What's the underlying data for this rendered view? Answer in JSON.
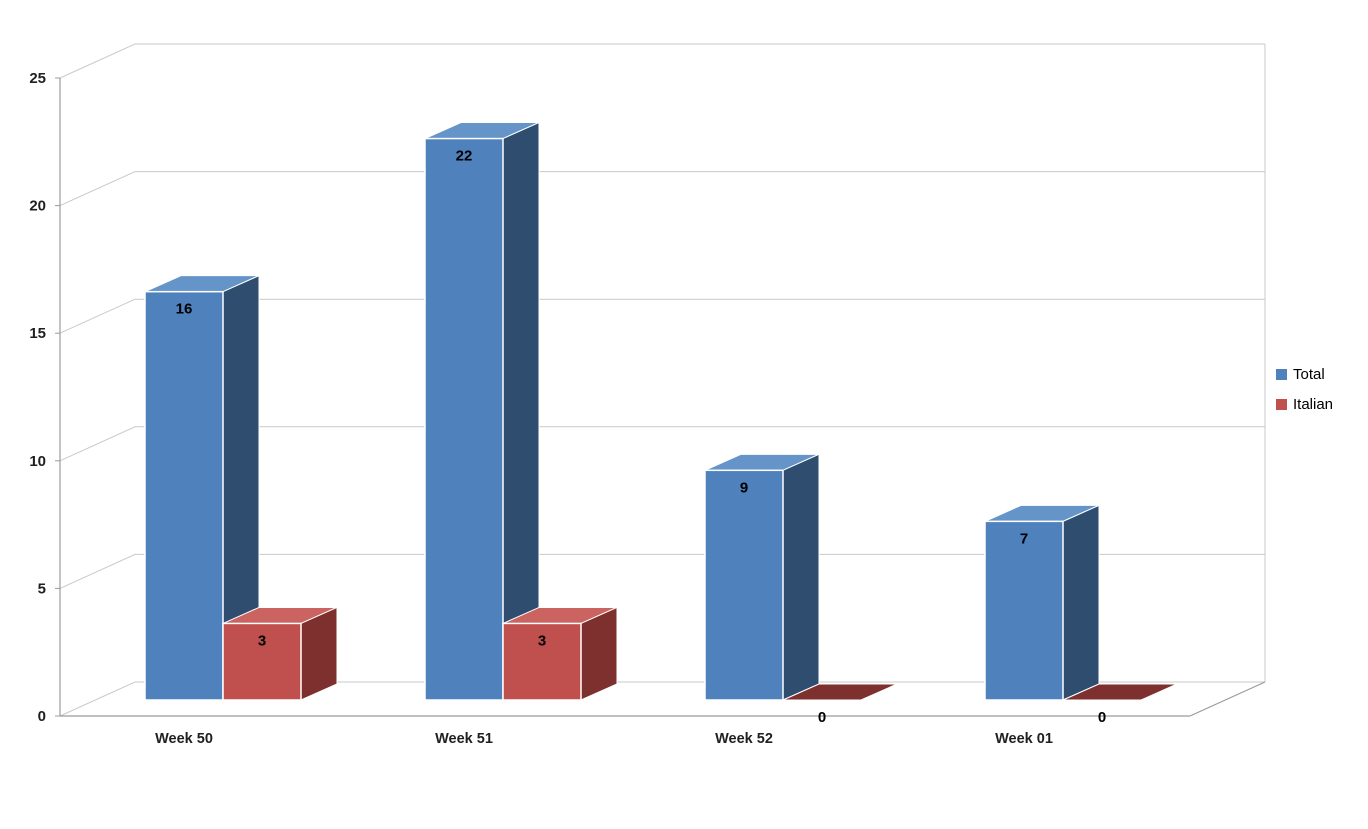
{
  "chart_data": {
    "type": "bar",
    "subtype": "3d-clustered-column",
    "title": "",
    "xlabel": "",
    "ylabel": "",
    "categories": [
      "Week 50",
      "Week 51",
      "Week 52",
      "Week 01"
    ],
    "series": [
      {
        "name": "Total",
        "color": "#4f81bd",
        "color_top": "#6494c8",
        "color_side": "#2e4d6f",
        "values": [
          16,
          22,
          9,
          7
        ]
      },
      {
        "name": "Italian",
        "color": "#c0504d",
        "color_top": "#cb6360",
        "color_side": "#7e302e",
        "values": [
          3,
          3,
          0,
          0
        ]
      }
    ],
    "ylim": [
      0,
      25
    ],
    "yticks": [
      0,
      5,
      10,
      15,
      20,
      25
    ],
    "grid": true,
    "data_labels": true,
    "legend_position": "right",
    "background": "#ffffff",
    "gridline_color": "#c9c9c9",
    "axis_color": "#9b9b9b"
  }
}
